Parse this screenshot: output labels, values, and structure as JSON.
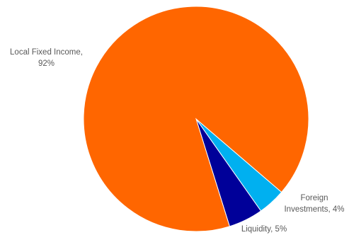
{
  "chart_data": {
    "type": "pie",
    "title": "",
    "slices": [
      {
        "name": "Local Fixed Income",
        "value": 92,
        "label_name": "Local Fixed Income,",
        "label_value": "92%",
        "color": "#FF6600"
      },
      {
        "name": "Foreign Investments",
        "value": 4,
        "label_name": "Foreign",
        "label_value": "Investments, 4%",
        "color": "#00B0F0"
      },
      {
        "name": "Liquidity",
        "value": 5,
        "label_name": "Liquidity, 5%",
        "label_value": "",
        "color": "#000099"
      }
    ],
    "legend": "none"
  }
}
